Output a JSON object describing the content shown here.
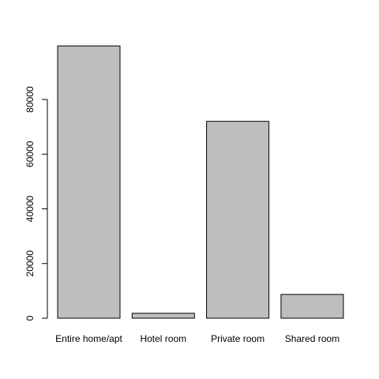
{
  "chart_data": {
    "type": "bar",
    "categories": [
      "Entire home/apt",
      "Hotel room",
      "Private room",
      "Shared room"
    ],
    "values": [
      99600,
      1800,
      72000,
      8700
    ],
    "title": "",
    "xlabel": "",
    "ylabel": "",
    "ylim": [
      0,
      100000
    ],
    "yticks": [
      0,
      20000,
      40000,
      60000,
      80000
    ],
    "bar_color": "#bebebe",
    "grid": false
  }
}
